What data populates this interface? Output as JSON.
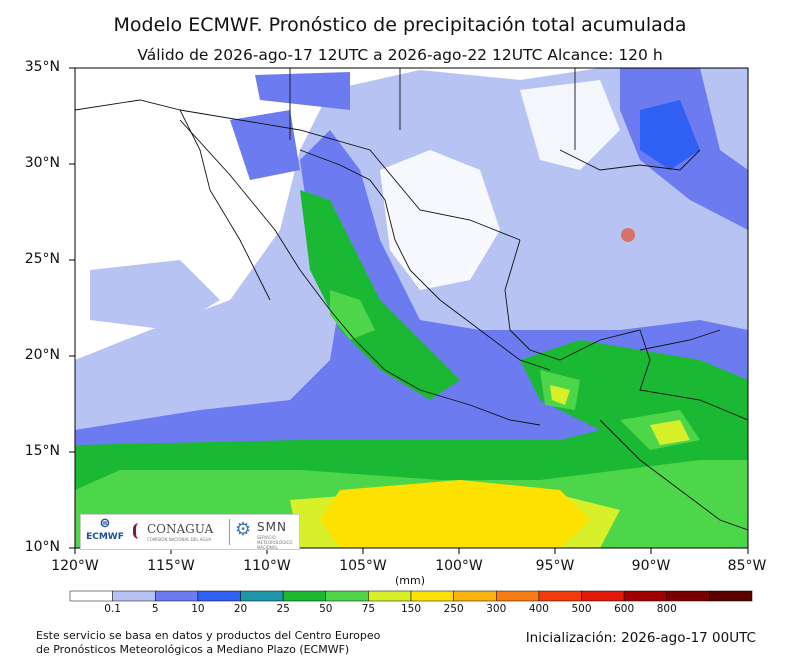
{
  "title": "Modelo ECMWF. Pronóstico de precipitación total acumulada",
  "subtitle": "Válido de 2026-ago-17 12UTC a 2026-ago-22 12UTC   Alcance: 120 h",
  "lat_labels": [
    "35°N",
    "30°N",
    "25°N",
    "20°N",
    "15°N",
    "10°N"
  ],
  "lon_labels": [
    "120°W",
    "115°W",
    "110°W",
    "105°W",
    "100°W",
    "95°W",
    "90°W",
    "85°W"
  ],
  "units": "(mm)",
  "colorbar": {
    "labels": [
      "0.1",
      "5",
      "10",
      "20",
      "25",
      "50",
      "75",
      "150",
      "250",
      "300",
      "400",
      "500",
      "600",
      "800"
    ],
    "colors": [
      "#ffffff",
      "#b7c3f3",
      "#6c7cf0",
      "#2f5ff3",
      "#1f95a8",
      "#1bb833",
      "#4ed64a",
      "#d7f02a",
      "#ffe100",
      "#fcb30d",
      "#f87c12",
      "#f23a0b",
      "#e11a0a",
      "#a10000",
      "#7a0000",
      "#5a0000"
    ]
  },
  "logos": {
    "ecmwf_text": "ECMWF",
    "conagua_text": "CONAGUA",
    "conagua_sub": "COMISIÓN NACIONAL DEL AGUA",
    "smn_text": "SMN",
    "smn_sub": "SERVICIO METEOROLÓGICO NACIONAL"
  },
  "footer_left": [
    "Este servicio se basa en datos y productos del Centro Europeo",
    "de Pronósticos Meteorológicos a Mediano Plazo (ECMWF)"
  ],
  "footer_right": "Inicialización: 2026-ago-17 00UTC"
}
